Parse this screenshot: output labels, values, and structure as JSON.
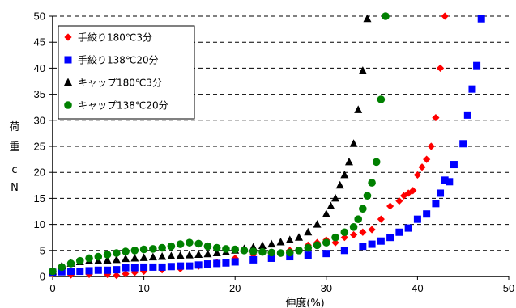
{
  "chart_data": {
    "type": "scatter",
    "xlabel": "伸度(%)",
    "ylabel_chars": [
      "荷",
      "重",
      "",
      "c",
      "N"
    ],
    "xlim": [
      0,
      50
    ],
    "ylim": [
      0,
      50
    ],
    "x_ticks": [
      "0",
      "10",
      "20",
      "30",
      "40",
      "50"
    ],
    "y_ticks": [
      "0",
      "5",
      "10",
      "15",
      "20",
      "25",
      "30",
      "35",
      "40",
      "45",
      "50"
    ],
    "grid": "horizontal-dashed",
    "legend_position": "top-left",
    "series": [
      {
        "name": "手絞り180℃3分",
        "marker": "diamond",
        "color": "#ff0000",
        "points": [
          [
            0,
            0.5
          ],
          [
            2,
            0.3
          ],
          [
            4,
            0.4
          ],
          [
            6,
            0.4
          ],
          [
            7,
            0.2
          ],
          [
            8,
            0.5
          ],
          [
            9,
            0.8
          ],
          [
            10,
            1
          ],
          [
            12,
            1.3
          ],
          [
            14,
            1.5
          ],
          [
            16,
            2
          ],
          [
            18,
            2.7
          ],
          [
            20,
            3.5
          ],
          [
            22,
            4.2
          ],
          [
            24,
            4.5
          ],
          [
            26,
            5
          ],
          [
            28,
            6
          ],
          [
            29,
            6.5
          ],
          [
            30,
            7
          ],
          [
            31,
            6.5
          ],
          [
            32,
            7.5
          ],
          [
            33,
            8
          ],
          [
            34,
            8.5
          ],
          [
            35,
            9
          ],
          [
            36,
            11
          ],
          [
            37,
            13.5
          ],
          [
            38,
            14.5
          ],
          [
            38.5,
            15.5
          ],
          [
            39,
            16
          ],
          [
            39.5,
            16.5
          ],
          [
            40,
            19.5
          ],
          [
            40.5,
            21
          ],
          [
            41,
            22.5
          ],
          [
            41.5,
            25
          ],
          [
            42,
            30.5
          ],
          [
            42.5,
            40
          ],
          [
            43,
            50
          ]
        ]
      },
      {
        "name": "手絞り138℃20分",
        "marker": "square",
        "color": "#0000ff",
        "points": [
          [
            0,
            0.8
          ],
          [
            1,
            0.9
          ],
          [
            2,
            1
          ],
          [
            3,
            1
          ],
          [
            4,
            1.1
          ],
          [
            5,
            1.2
          ],
          [
            6,
            1.2
          ],
          [
            7,
            1.3
          ],
          [
            8,
            1.7
          ],
          [
            9,
            1.7
          ],
          [
            10,
            1.8
          ],
          [
            11,
            1.8
          ],
          [
            12,
            1.8
          ],
          [
            13,
            1.9
          ],
          [
            14,
            2
          ],
          [
            15,
            2
          ],
          [
            16,
            2.2
          ],
          [
            17,
            2.4
          ],
          [
            18,
            2.5
          ],
          [
            19,
            2.6
          ],
          [
            20,
            2.8
          ],
          [
            22,
            3.2
          ],
          [
            24,
            3.5
          ],
          [
            26,
            3.8
          ],
          [
            28,
            4.1
          ],
          [
            30,
            4.4
          ],
          [
            32,
            5
          ],
          [
            34,
            5.8
          ],
          [
            35,
            6.2
          ],
          [
            36,
            6.8
          ],
          [
            37,
            7.5
          ],
          [
            38,
            8.5
          ],
          [
            39,
            9.3
          ],
          [
            40,
            11
          ],
          [
            41,
            12
          ],
          [
            42,
            14
          ],
          [
            42.5,
            16
          ],
          [
            43,
            18.5
          ],
          [
            43.5,
            18.2
          ],
          [
            44,
            21.5
          ],
          [
            45,
            25.5
          ],
          [
            45.5,
            31
          ],
          [
            46,
            36
          ],
          [
            46.5,
            40.5
          ],
          [
            47,
            49.5
          ]
        ]
      },
      {
        "name": "キャップ180℃3分",
        "marker": "triangle",
        "color": "#000000",
        "points": [
          [
            0,
            1
          ],
          [
            1,
            2
          ],
          [
            2,
            2.5
          ],
          [
            3,
            2.8
          ],
          [
            4,
            3
          ],
          [
            5,
            3
          ],
          [
            6,
            3.1
          ],
          [
            7,
            3.2
          ],
          [
            8,
            3.4
          ],
          [
            9,
            3.5
          ],
          [
            10,
            3.6
          ],
          [
            11,
            3.7
          ],
          [
            12,
            3.8
          ],
          [
            13,
            3.9
          ],
          [
            14,
            4
          ],
          [
            15,
            4.1
          ],
          [
            16,
            4.2
          ],
          [
            17,
            4.3
          ],
          [
            18,
            4.5
          ],
          [
            19,
            4.7
          ],
          [
            20,
            5
          ],
          [
            21,
            5.3
          ],
          [
            22,
            5.6
          ],
          [
            23,
            5.9
          ],
          [
            24,
            6.2
          ],
          [
            25,
            6.6
          ],
          [
            26,
            7
          ],
          [
            27,
            7.5
          ],
          [
            28,
            8.5
          ],
          [
            29,
            10
          ],
          [
            30,
            12
          ],
          [
            30.5,
            13.5
          ],
          [
            31,
            15
          ],
          [
            31.5,
            17.5
          ],
          [
            32,
            19.5
          ],
          [
            32.5,
            22
          ],
          [
            33,
            25.5
          ],
          [
            33.5,
            32
          ],
          [
            34,
            39.5
          ],
          [
            34.5,
            49.5
          ]
        ]
      },
      {
        "name": "キャップ138℃20分",
        "marker": "circle",
        "color": "#008000",
        "points": [
          [
            0,
            1
          ],
          [
            1,
            1.8
          ],
          [
            2,
            2.5
          ],
          [
            3,
            3
          ],
          [
            4,
            3.5
          ],
          [
            5,
            3.8
          ],
          [
            6,
            4.2
          ],
          [
            7,
            4.5
          ],
          [
            8,
            4.8
          ],
          [
            9,
            5
          ],
          [
            10,
            5.2
          ],
          [
            11,
            5.3
          ],
          [
            12,
            5.5
          ],
          [
            13,
            5.8
          ],
          [
            14,
            6.2
          ],
          [
            15,
            6.5
          ],
          [
            16,
            6.3
          ],
          [
            17,
            5.8
          ],
          [
            18,
            5.5
          ],
          [
            19,
            5.3
          ],
          [
            20,
            5.2
          ],
          [
            21,
            5
          ],
          [
            22,
            4.8
          ],
          [
            23,
            4.7
          ],
          [
            24,
            4.6
          ],
          [
            25,
            4.5
          ],
          [
            26,
            4.6
          ],
          [
            27,
            5
          ],
          [
            28,
            5.5
          ],
          [
            29,
            6
          ],
          [
            30,
            6.5
          ],
          [
            31,
            7.5
          ],
          [
            32,
            8.5
          ],
          [
            33,
            9.5
          ],
          [
            33.5,
            11
          ],
          [
            34,
            13
          ],
          [
            34.5,
            15.5
          ],
          [
            35,
            18
          ],
          [
            35.5,
            22
          ],
          [
            36,
            34
          ],
          [
            36.5,
            50
          ]
        ]
      }
    ]
  }
}
